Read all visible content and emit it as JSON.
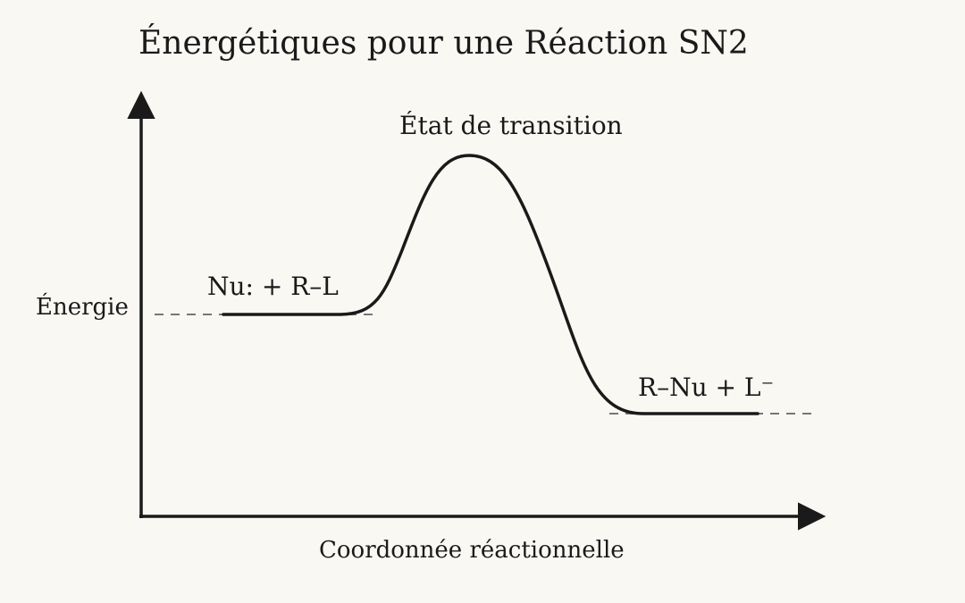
{
  "title": "Énergétiques pour une Réaction SN2",
  "axes": {
    "y_label": "Énergie",
    "x_label": "Coordonnée réactionnelle"
  },
  "states": {
    "reactants": "Nu: + R–L",
    "transition": "État de transition",
    "products": "R–Nu + L⁻"
  },
  "colors": {
    "background": "#faf8f3",
    "ink": "#1a1a1a",
    "dashed": "#777777"
  }
}
